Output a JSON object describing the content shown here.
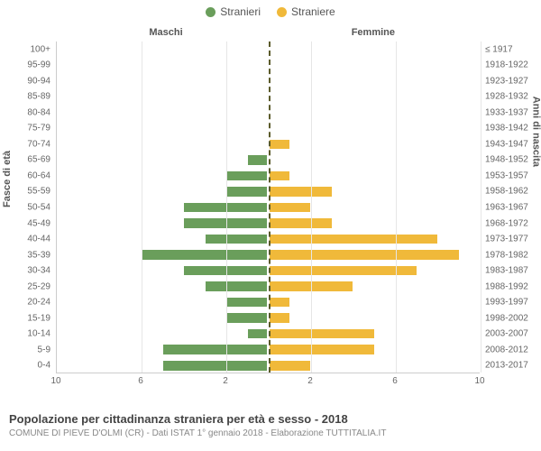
{
  "legend": {
    "male": {
      "label": "Stranieri",
      "color": "#6a9e5b"
    },
    "female": {
      "label": "Straniere",
      "color": "#f0b93a"
    }
  },
  "topLabels": {
    "left": "Maschi",
    "right": "Femmine"
  },
  "axes": {
    "leftTitle": "Fasce di età",
    "rightTitle": "Anni di nascita",
    "xlim": 10,
    "xticks": [
      10,
      6,
      2,
      2,
      6,
      10
    ],
    "grid_color": "#e6e6e6",
    "centerline_color": "#5b5b2b"
  },
  "rows": [
    {
      "age": "100+",
      "birth": "≤ 1917",
      "m": 0,
      "f": 0
    },
    {
      "age": "95-99",
      "birth": "1918-1922",
      "m": 0,
      "f": 0
    },
    {
      "age": "90-94",
      "birth": "1923-1927",
      "m": 0,
      "f": 0
    },
    {
      "age": "85-89",
      "birth": "1928-1932",
      "m": 0,
      "f": 0
    },
    {
      "age": "80-84",
      "birth": "1933-1937",
      "m": 0,
      "f": 0
    },
    {
      "age": "75-79",
      "birth": "1938-1942",
      "m": 0,
      "f": 0
    },
    {
      "age": "70-74",
      "birth": "1943-1947",
      "m": 0,
      "f": 1
    },
    {
      "age": "65-69",
      "birth": "1948-1952",
      "m": 1,
      "f": 0
    },
    {
      "age": "60-64",
      "birth": "1953-1957",
      "m": 2,
      "f": 1
    },
    {
      "age": "55-59",
      "birth": "1958-1962",
      "m": 2,
      "f": 3
    },
    {
      "age": "50-54",
      "birth": "1963-1967",
      "m": 4,
      "f": 2
    },
    {
      "age": "45-49",
      "birth": "1968-1972",
      "m": 4,
      "f": 3
    },
    {
      "age": "40-44",
      "birth": "1973-1977",
      "m": 3,
      "f": 8
    },
    {
      "age": "35-39",
      "birth": "1978-1982",
      "m": 6,
      "f": 9
    },
    {
      "age": "30-34",
      "birth": "1983-1987",
      "m": 4,
      "f": 7
    },
    {
      "age": "25-29",
      "birth": "1988-1992",
      "m": 3,
      "f": 4
    },
    {
      "age": "20-24",
      "birth": "1993-1997",
      "m": 2,
      "f": 1
    },
    {
      "age": "15-19",
      "birth": "1998-2002",
      "m": 2,
      "f": 1
    },
    {
      "age": "10-14",
      "birth": "2003-2007",
      "m": 1,
      "f": 5
    },
    {
      "age": "5-9",
      "birth": "2008-2012",
      "m": 5,
      "f": 5
    },
    {
      "age": "0-4",
      "birth": "2013-2017",
      "m": 5,
      "f": 2
    }
  ],
  "footer": {
    "title": "Popolazione per cittadinanza straniera per età e sesso - 2018",
    "sub": "COMUNE DI PIEVE D'OLMI (CR) - Dati ISTAT 1° gennaio 2018 - Elaborazione TUTTITALIA.IT"
  },
  "style": {
    "bar_border": "#ffffff",
    "font": "Arial"
  }
}
